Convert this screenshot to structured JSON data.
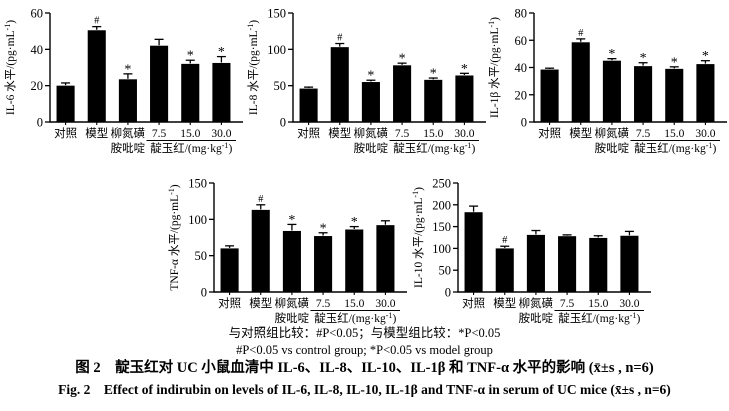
{
  "figure": {
    "notes_cn": "与对照组比较：#P<0.05；与模型组比较：*P<0.05",
    "notes_en": "#P<0.05 vs control group; *P<0.05 vs model group",
    "caption_cn": "图 2　靛玉红对 UC 小鼠血清中 IL-6、IL-8、IL-10、IL-1β 和 TNF-α 水平的影响 (x̄±s , n=6)",
    "caption_en": "Fig. 2　Effect of indirubin on levels of IL-6, IL-8, IL-10, IL-1β and TNF-α in serum of UC mice (x̄±s , n=6)"
  },
  "xaxis": {
    "categories_row1": [
      "对照",
      "模型",
      "柳氮磺",
      "7.5",
      "15.0",
      "30.0"
    ],
    "category3_line2": "胺吡啶",
    "dose_group_label": "靛玉红/(mg·kg⁻¹)",
    "dose_indices": [
      3,
      4,
      5
    ]
  },
  "bar_color": "#000000",
  "chart_data": [
    {
      "type": "bar",
      "name": "IL-6",
      "ylabel": "IL-6 水平/(pg·mL⁻¹)",
      "ylim": [
        0,
        60
      ],
      "yticks": [
        0,
        20,
        40,
        60
      ],
      "categories": [
        "对照",
        "模型",
        "柳氮磺胺吡啶",
        "7.5",
        "15.0",
        "30.0"
      ],
      "values": [
        20,
        50.5,
        23.5,
        42,
        32,
        32.5
      ],
      "errors": [
        1.5,
        2,
        3,
        3.5,
        2,
        3.5
      ],
      "sig_marks": [
        "",
        "#",
        "*",
        "",
        "*",
        "*"
      ],
      "grid": false
    },
    {
      "type": "bar",
      "name": "IL-8",
      "ylabel": "IL-8 水平/(pg·mL⁻¹)",
      "ylim": [
        0,
        150
      ],
      "yticks": [
        0,
        50,
        100,
        150
      ],
      "categories": [
        "对照",
        "模型",
        "柳氮磺胺吡啶",
        "7.5",
        "15.0",
        "30.0"
      ],
      "values": [
        46,
        103,
        55,
        78,
        58,
        64
      ],
      "errors": [
        2,
        5,
        2.5,
        3,
        2.5,
        3
      ],
      "sig_marks": [
        "",
        "#",
        "*",
        "*",
        "*",
        "*"
      ],
      "grid": false
    },
    {
      "type": "bar",
      "name": "IL-1β",
      "ylabel": "IL-1β 水平/(pg·mL⁻¹)",
      "ylim": [
        0,
        80
      ],
      "yticks": [
        0,
        20,
        40,
        60,
        80
      ],
      "categories": [
        "对照",
        "模型",
        "柳氮磺胺吡啶",
        "7.5",
        "15.0",
        "30.0"
      ],
      "values": [
        38.5,
        58.5,
        45,
        41,
        39,
        42.5
      ],
      "errors": [
        1,
        2.5,
        1.5,
        2.5,
        1.5,
        2.5
      ],
      "sig_marks": [
        "",
        "#",
        "*",
        "*",
        "*",
        "*"
      ],
      "grid": false
    },
    {
      "type": "bar",
      "name": "TNF-α",
      "ylabel": "TNF-α 水平/(pg·mL⁻¹)",
      "ylim": [
        0,
        150
      ],
      "yticks": [
        0,
        50,
        100,
        150
      ],
      "categories": [
        "对照",
        "模型",
        "柳氮磺胺吡啶",
        "7.5",
        "15.0",
        "30.0"
      ],
      "values": [
        60,
        113,
        84,
        77,
        86,
        92
      ],
      "errors": [
        3.5,
        7,
        9,
        4.5,
        4,
        6
      ],
      "sig_marks": [
        "",
        "#",
        "*",
        "*",
        "*",
        ""
      ],
      "grid": false
    },
    {
      "type": "bar",
      "name": "IL-10",
      "ylabel": "IL-10 水平/(pg·mL⁻¹)",
      "ylim": [
        0,
        250
      ],
      "yticks": [
        0,
        50,
        100,
        150,
        200,
        250
      ],
      "categories": [
        "对照",
        "模型",
        "柳氮磺胺吡啶",
        "7.5",
        "15.0",
        "30.0"
      ],
      "values": [
        183,
        100,
        131,
        128,
        124,
        129
      ],
      "errors": [
        14,
        5,
        10,
        3,
        5,
        10
      ],
      "sig_marks": [
        "",
        "#",
        "",
        "",
        "",
        ""
      ],
      "grid": false
    }
  ]
}
